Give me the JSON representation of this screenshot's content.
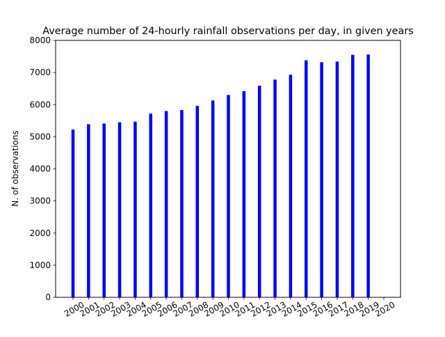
{
  "chart_data": {
    "type": "bar",
    "title": "Average number of 24-hourly rainfall observations per day, in given years",
    "xlabel": "",
    "ylabel": "N. of observations",
    "ylim": [
      0,
      8000
    ],
    "yticks": [
      0,
      1000,
      2000,
      3000,
      4000,
      5000,
      6000,
      7000,
      8000
    ],
    "categories": [
      "2000",
      "2001",
      "2002",
      "2003",
      "2004",
      "2005",
      "2006",
      "2007",
      "2008",
      "2009",
      "2010",
      "2011",
      "2012",
      "2013",
      "2014",
      "2015",
      "2016",
      "2017",
      "2018",
      "2019",
      "2020"
    ],
    "values": [
      5220,
      5390,
      5410,
      5450,
      5470,
      5720,
      5800,
      5830,
      5960,
      6130,
      6300,
      6420,
      6590,
      6780,
      6930,
      7380,
      7320,
      7340,
      7550,
      7560,
      null
    ],
    "bar_color": "#0000ff",
    "grid": false,
    "tick_label_rotation": 30
  }
}
